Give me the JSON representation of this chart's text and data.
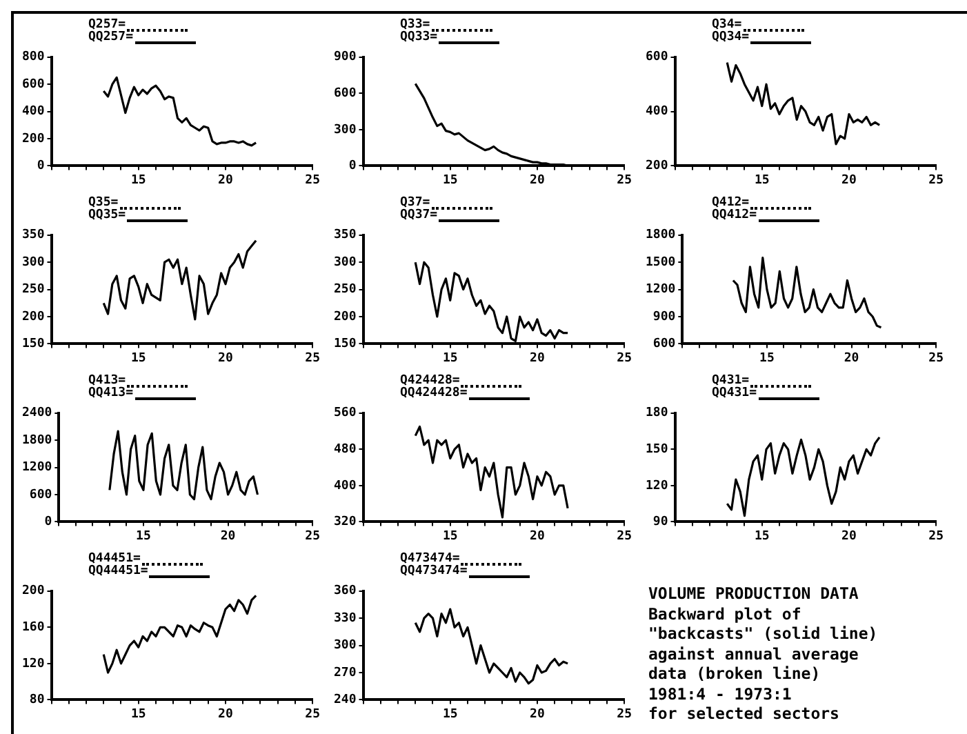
{
  "chart_data": [
    {
      "type": "line",
      "legend": "top left",
      "marker": "none",
      "grid": false,
      "xlim": [
        10,
        25
      ],
      "xticks": [
        {
          "value": 10,
          "label": null
        },
        {
          "value": 11,
          "label": null
        },
        {
          "value": 12,
          "label": null
        },
        {
          "value": 13,
          "label": null
        },
        {
          "value": 14,
          "label": null
        },
        15,
        {
          "value": 16,
          "label": null
        },
        {
          "value": 17,
          "label": null
        },
        {
          "value": 18,
          "label": null
        },
        {
          "value": 19,
          "label": null
        },
        20,
        {
          "value": 21,
          "label": null
        },
        {
          "value": 22,
          "label": null
        },
        {
          "value": 23,
          "label": null
        },
        {
          "value": 24,
          "label": null
        },
        25
      ],
      "ylim": [
        0,
        800
      ],
      "yticks": [
        0,
        200,
        400,
        600,
        800
      ],
      "x": [
        13,
        13.25,
        13.5,
        13.75,
        14,
        14.25,
        14.5,
        14.75,
        15,
        15.25,
        15.5,
        15.75,
        16,
        16.25,
        16.5,
        16.75,
        17,
        17.25,
        17.5,
        17.75,
        18,
        18.25,
        18.5,
        18.75,
        19,
        19.25,
        19.5,
        19.75,
        20,
        20.25,
        20.5,
        20.75,
        21,
        21.25,
        21.5,
        21.75
      ],
      "series": [
        {
          "name": "Q257=",
          "color": "#000000",
          "line_style": "dotted",
          "values": [
            null,
            null,
            null,
            null,
            null,
            null,
            null,
            null,
            null,
            null,
            null,
            null,
            null,
            null,
            null,
            null,
            null,
            null,
            null,
            null,
            null,
            null,
            null,
            null,
            null,
            null,
            null,
            null,
            null,
            null,
            null,
            null,
            null,
            null,
            null,
            null
          ]
        },
        {
          "name": "QQ257=",
          "color": "#000000",
          "line_style": "solid",
          "values": [
            550,
            510,
            600,
            650,
            520,
            390,
            500,
            580,
            520,
            560,
            530,
            570,
            590,
            550,
            490,
            510,
            500,
            350,
            320,
            350,
            300,
            280,
            260,
            290,
            280,
            180,
            160,
            170,
            170,
            180,
            180,
            170,
            180,
            160,
            150,
            170
          ]
        }
      ]
    },
    {
      "type": "line",
      "legend": "top left",
      "marker": "none",
      "grid": false,
      "xlim": [
        10,
        25
      ],
      "xticks": [
        {
          "value": 10,
          "label": null
        },
        {
          "value": 11,
          "label": null
        },
        {
          "value": 12,
          "label": null
        },
        {
          "value": 13,
          "label": null
        },
        {
          "value": 14,
          "label": null
        },
        15,
        {
          "value": 16,
          "label": null
        },
        {
          "value": 17,
          "label": null
        },
        {
          "value": 18,
          "label": null
        },
        {
          "value": 19,
          "label": null
        },
        20,
        {
          "value": 21,
          "label": null
        },
        {
          "value": 22,
          "label": null
        },
        {
          "value": 23,
          "label": null
        },
        {
          "value": 24,
          "label": null
        },
        25
      ],
      "ylim": [
        0,
        900
      ],
      "yticks": [
        0,
        300,
        600,
        900
      ],
      "x": [
        13,
        13.25,
        13.5,
        13.75,
        14,
        14.25,
        14.5,
        14.75,
        15,
        15.25,
        15.5,
        15.75,
        16,
        16.25,
        16.5,
        16.75,
        17,
        17.25,
        17.5,
        17.75,
        18,
        18.25,
        18.5,
        18.75,
        19,
        19.25,
        19.5,
        19.75,
        20,
        20.25,
        20.5,
        20.75,
        21,
        21.25,
        21.5,
        21.75
      ],
      "series": [
        {
          "name": "Q33=",
          "color": "#000000",
          "line_style": "dotted",
          "values": [
            null,
            null,
            null,
            null,
            null,
            null,
            null,
            null,
            null,
            null,
            null,
            null,
            null,
            null,
            null,
            null,
            null,
            null,
            null,
            null,
            null,
            null,
            null,
            null,
            null,
            null,
            null,
            null,
            null,
            null,
            null,
            null,
            null,
            null,
            null,
            null
          ]
        },
        {
          "name": "QQ33=",
          "color": "#000000",
          "line_style": "solid",
          "values": [
            680,
            620,
            560,
            480,
            400,
            330,
            350,
            290,
            280,
            260,
            270,
            240,
            210,
            190,
            170,
            150,
            130,
            140,
            160,
            130,
            110,
            100,
            80,
            70,
            60,
            50,
            40,
            30,
            30,
            20,
            20,
            10,
            10,
            10,
            10,
            0
          ]
        }
      ]
    },
    {
      "type": "line",
      "legend": "top left",
      "marker": "none",
      "grid": false,
      "xlim": [
        10,
        25
      ],
      "xticks": [
        {
          "value": 10,
          "label": null
        },
        {
          "value": 11,
          "label": null
        },
        {
          "value": 12,
          "label": null
        },
        {
          "value": 13,
          "label": null
        },
        {
          "value": 14,
          "label": null
        },
        15,
        {
          "value": 16,
          "label": null
        },
        {
          "value": 17,
          "label": null
        },
        {
          "value": 18,
          "label": null
        },
        {
          "value": 19,
          "label": null
        },
        20,
        {
          "value": 21,
          "label": null
        },
        {
          "value": 22,
          "label": null
        },
        {
          "value": 23,
          "label": null
        },
        {
          "value": 24,
          "label": null
        },
        25
      ],
      "ylim": [
        200,
        600
      ],
      "yticks": [
        200,
        400,
        600
      ],
      "x": [
        13,
        13.25,
        13.5,
        13.75,
        14,
        14.25,
        14.5,
        14.75,
        15,
        15.25,
        15.5,
        15.75,
        16,
        16.25,
        16.5,
        16.75,
        17,
        17.25,
        17.5,
        17.75,
        18,
        18.25,
        18.5,
        18.75,
        19,
        19.25,
        19.5,
        19.75,
        20,
        20.25,
        20.5,
        20.75,
        21,
        21.25,
        21.5,
        21.75
      ],
      "series": [
        {
          "name": "Q34=",
          "color": "#000000",
          "line_style": "dotted",
          "values": [
            null,
            null,
            null,
            null,
            null,
            null,
            null,
            null,
            null,
            null,
            null,
            null,
            null,
            null,
            null,
            null,
            null,
            null,
            null,
            null,
            null,
            null,
            null,
            null,
            null,
            null,
            null,
            null,
            null,
            null,
            null,
            null,
            null,
            null,
            null,
            null
          ]
        },
        {
          "name": "QQ34=",
          "color": "#000000",
          "line_style": "solid",
          "values": [
            580,
            510,
            570,
            540,
            500,
            470,
            440,
            490,
            420,
            500,
            410,
            430,
            390,
            420,
            440,
            450,
            370,
            420,
            400,
            360,
            350,
            380,
            330,
            380,
            390,
            280,
            310,
            300,
            390,
            360,
            370,
            360,
            380,
            350,
            360,
            350
          ]
        }
      ]
    },
    {
      "type": "line",
      "legend": "top left",
      "marker": "none",
      "grid": false,
      "xlim": [
        10,
        25
      ],
      "xticks": [
        {
          "value": 10,
          "label": null
        },
        {
          "value": 11,
          "label": null
        },
        {
          "value": 12,
          "label": null
        },
        {
          "value": 13,
          "label": null
        },
        {
          "value": 14,
          "label": null
        },
        15,
        {
          "value": 16,
          "label": null
        },
        {
          "value": 17,
          "label": null
        },
        {
          "value": 18,
          "label": null
        },
        {
          "value": 19,
          "label": null
        },
        20,
        {
          "value": 21,
          "label": null
        },
        {
          "value": 22,
          "label": null
        },
        {
          "value": 23,
          "label": null
        },
        {
          "value": 24,
          "label": null
        },
        25
      ],
      "ylim": [
        150,
        350
      ],
      "yticks": [
        150,
        200,
        250,
        300,
        350
      ],
      "x": [
        13,
        13.25,
        13.5,
        13.75,
        14,
        14.25,
        14.5,
        14.75,
        15,
        15.25,
        15.5,
        15.75,
        16,
        16.25,
        16.5,
        16.75,
        17,
        17.25,
        17.5,
        17.75,
        18,
        18.25,
        18.5,
        18.75,
        19,
        19.25,
        19.5,
        19.75,
        20,
        20.25,
        20.5,
        20.75,
        21,
        21.25,
        21.5,
        21.75
      ],
      "series": [
        {
          "name": "Q35=",
          "color": "#000000",
          "line_style": "dotted",
          "values": [
            null,
            null,
            null,
            null,
            null,
            null,
            null,
            null,
            null,
            null,
            null,
            null,
            null,
            null,
            null,
            null,
            null,
            null,
            null,
            null,
            null,
            null,
            null,
            null,
            null,
            null,
            null,
            null,
            null,
            null,
            null,
            null,
            null,
            null,
            null,
            null
          ]
        },
        {
          "name": "QQ35=",
          "color": "#000000",
          "line_style": "solid",
          "values": [
            225,
            205,
            260,
            275,
            230,
            215,
            270,
            275,
            255,
            225,
            260,
            240,
            235,
            230,
            300,
            305,
            290,
            305,
            260,
            290,
            240,
            195,
            275,
            260,
            205,
            225,
            240,
            280,
            260,
            290,
            300,
            315,
            290,
            320,
            330,
            340
          ]
        }
      ]
    },
    {
      "type": "line",
      "legend": "top left",
      "marker": "none",
      "grid": false,
      "xlim": [
        10,
        25
      ],
      "xticks": [
        {
          "value": 10,
          "label": null
        },
        {
          "value": 11,
          "label": null
        },
        {
          "value": 12,
          "label": null
        },
        {
          "value": 13,
          "label": null
        },
        {
          "value": 14,
          "label": null
        },
        15,
        {
          "value": 16,
          "label": null
        },
        {
          "value": 17,
          "label": null
        },
        {
          "value": 18,
          "label": null
        },
        {
          "value": 19,
          "label": null
        },
        20,
        {
          "value": 21,
          "label": null
        },
        {
          "value": 22,
          "label": null
        },
        {
          "value": 23,
          "label": null
        },
        {
          "value": 24,
          "label": null
        },
        25
      ],
      "ylim": [
        150,
        350
      ],
      "yticks": [
        150,
        200,
        250,
        300,
        350
      ],
      "x": [
        13,
        13.25,
        13.5,
        13.75,
        14,
        14.25,
        14.5,
        14.75,
        15,
        15.25,
        15.5,
        15.75,
        16,
        16.25,
        16.5,
        16.75,
        17,
        17.25,
        17.5,
        17.75,
        18,
        18.25,
        18.5,
        18.75,
        19,
        19.25,
        19.5,
        19.75,
        20,
        20.25,
        20.5,
        20.75,
        21,
        21.25,
        21.5,
        21.75
      ],
      "series": [
        {
          "name": "Q37=",
          "color": "#000000",
          "line_style": "dotted",
          "values": [
            null,
            null,
            null,
            null,
            null,
            null,
            null,
            null,
            null,
            null,
            null,
            null,
            null,
            null,
            null,
            null,
            null,
            null,
            null,
            null,
            null,
            null,
            null,
            null,
            null,
            null,
            null,
            null,
            null,
            null,
            null,
            null,
            null,
            null,
            null,
            null
          ]
        },
        {
          "name": "QQ37=",
          "color": "#000000",
          "line_style": "solid",
          "values": [
            300,
            260,
            300,
            290,
            240,
            200,
            250,
            270,
            230,
            280,
            275,
            250,
            270,
            240,
            220,
            230,
            205,
            220,
            210,
            180,
            170,
            200,
            160,
            155,
            200,
            180,
            190,
            175,
            195,
            170,
            165,
            175,
            160,
            175,
            170,
            170
          ]
        }
      ]
    },
    {
      "type": "line",
      "legend": "top left",
      "marker": "none",
      "grid": false,
      "xlim": [
        10,
        25
      ],
      "xticks": [
        {
          "value": 10,
          "label": null
        },
        {
          "value": 11,
          "label": null
        },
        {
          "value": 12,
          "label": null
        },
        {
          "value": 13,
          "label": null
        },
        {
          "value": 14,
          "label": null
        },
        15,
        {
          "value": 16,
          "label": null
        },
        {
          "value": 17,
          "label": null
        },
        {
          "value": 18,
          "label": null
        },
        {
          "value": 19,
          "label": null
        },
        20,
        {
          "value": 21,
          "label": null
        },
        {
          "value": 22,
          "label": null
        },
        {
          "value": 23,
          "label": null
        },
        {
          "value": 24,
          "label": null
        },
        25
      ],
      "ylim": [
        600,
        1800
      ],
      "yticks": [
        600,
        900,
        1200,
        1500,
        1800
      ],
      "x": [
        13,
        13.25,
        13.5,
        13.75,
        14,
        14.25,
        14.5,
        14.75,
        15,
        15.25,
        15.5,
        15.75,
        16,
        16.25,
        16.5,
        16.75,
        17,
        17.25,
        17.5,
        17.75,
        18,
        18.25,
        18.5,
        18.75,
        19,
        19.25,
        19.5,
        19.75,
        20,
        20.25,
        20.5,
        20.75,
        21,
        21.25,
        21.5,
        21.75
      ],
      "series": [
        {
          "name": "Q412=",
          "color": "#000000",
          "line_style": "dotted",
          "values": [
            null,
            null,
            null,
            null,
            null,
            null,
            null,
            null,
            null,
            null,
            null,
            null,
            null,
            null,
            null,
            null,
            null,
            null,
            null,
            null,
            null,
            null,
            null,
            null,
            null,
            null,
            null,
            null,
            null,
            null,
            null,
            null,
            null,
            null,
            null,
            null
          ]
        },
        {
          "name": "QQ412=",
          "color": "#000000",
          "line_style": "solid",
          "values": [
            1300,
            1250,
            1050,
            950,
            1450,
            1150,
            1000,
            1550,
            1200,
            1000,
            1050,
            1400,
            1100,
            1000,
            1100,
            1450,
            1150,
            950,
            1000,
            1200,
            1000,
            950,
            1050,
            1150,
            1050,
            1000,
            1000,
            1300,
            1100,
            950,
            1000,
            1100,
            950,
            900,
            800,
            780
          ]
        }
      ]
    },
    {
      "type": "line",
      "legend": "top left",
      "marker": "none",
      "grid": false,
      "xlim": [
        10,
        25
      ],
      "xticks": [
        {
          "value": 10,
          "label": null
        },
        {
          "value": 11,
          "label": null
        },
        {
          "value": 12,
          "label": null
        },
        {
          "value": 13,
          "label": null
        },
        {
          "value": 14,
          "label": null
        },
        15,
        {
          "value": 16,
          "label": null
        },
        {
          "value": 17,
          "label": null
        },
        {
          "value": 18,
          "label": null
        },
        {
          "value": 19,
          "label": null
        },
        20,
        {
          "value": 21,
          "label": null
        },
        {
          "value": 22,
          "label": null
        },
        {
          "value": 23,
          "label": null
        },
        {
          "value": 24,
          "label": null
        },
        25
      ],
      "ylim": [
        0,
        2400
      ],
      "yticks": [
        0,
        600,
        1200,
        1800,
        2400
      ],
      "x": [
        13,
        13.25,
        13.5,
        13.75,
        14,
        14.25,
        14.5,
        14.75,
        15,
        15.25,
        15.5,
        15.75,
        16,
        16.25,
        16.5,
        16.75,
        17,
        17.25,
        17.5,
        17.75,
        18,
        18.25,
        18.5,
        18.75,
        19,
        19.25,
        19.5,
        19.75,
        20,
        20.25,
        20.5,
        20.75,
        21,
        21.25,
        21.5,
        21.75
      ],
      "series": [
        {
          "name": "Q413=",
          "color": "#000000",
          "line_style": "dotted",
          "values": [
            null,
            null,
            null,
            null,
            null,
            null,
            null,
            null,
            null,
            null,
            null,
            null,
            null,
            null,
            null,
            null,
            null,
            null,
            null,
            null,
            null,
            null,
            null,
            null,
            null,
            null,
            null,
            null,
            null,
            null,
            null,
            null,
            null,
            null,
            null,
            null
          ]
        },
        {
          "name": "QQ413=",
          "color": "#000000",
          "line_style": "solid",
          "values": [
            700,
            1500,
            2000,
            1100,
            600,
            1600,
            1900,
            900,
            700,
            1700,
            1950,
            900,
            600,
            1400,
            1700,
            800,
            700,
            1300,
            1700,
            600,
            500,
            1200,
            1650,
            700,
            500,
            1000,
            1300,
            1100,
            600,
            800,
            1100,
            700,
            600,
            900,
            1000,
            600
          ]
        }
      ]
    },
    {
      "type": "line",
      "legend": "top left",
      "marker": "none",
      "grid": false,
      "xlim": [
        10,
        25
      ],
      "xticks": [
        {
          "value": 10,
          "label": null
        },
        {
          "value": 11,
          "label": null
        },
        {
          "value": 12,
          "label": null
        },
        {
          "value": 13,
          "label": null
        },
        {
          "value": 14,
          "label": null
        },
        15,
        {
          "value": 16,
          "label": null
        },
        {
          "value": 17,
          "label": null
        },
        {
          "value": 18,
          "label": null
        },
        {
          "value": 19,
          "label": null
        },
        20,
        {
          "value": 21,
          "label": null
        },
        {
          "value": 22,
          "label": null
        },
        {
          "value": 23,
          "label": null
        },
        {
          "value": 24,
          "label": null
        },
        25
      ],
      "ylim": [
        320,
        560
      ],
      "yticks": [
        320,
        400,
        480,
        560
      ],
      "x": [
        13,
        13.25,
        13.5,
        13.75,
        14,
        14.25,
        14.5,
        14.75,
        15,
        15.25,
        15.5,
        15.75,
        16,
        16.25,
        16.5,
        16.75,
        17,
        17.25,
        17.5,
        17.75,
        18,
        18.25,
        18.5,
        18.75,
        19,
        19.25,
        19.5,
        19.75,
        20,
        20.25,
        20.5,
        20.75,
        21,
        21.25,
        21.5,
        21.75
      ],
      "series": [
        {
          "name": "Q424428=",
          "color": "#000000",
          "line_style": "dotted",
          "values": [
            null,
            null,
            null,
            null,
            null,
            null,
            null,
            null,
            null,
            null,
            null,
            null,
            null,
            null,
            null,
            null,
            null,
            null,
            null,
            null,
            null,
            null,
            null,
            null,
            null,
            null,
            null,
            null,
            null,
            null,
            null,
            null,
            null,
            null,
            null,
            null
          ]
        },
        {
          "name": "QQ424428=",
          "color": "#000000",
          "line_style": "solid",
          "values": [
            510,
            530,
            490,
            500,
            450,
            500,
            490,
            500,
            460,
            480,
            490,
            440,
            470,
            450,
            460,
            390,
            440,
            420,
            450,
            380,
            330,
            440,
            440,
            380,
            400,
            450,
            420,
            370,
            420,
            400,
            430,
            420,
            380,
            400,
            400,
            350
          ]
        }
      ]
    },
    {
      "type": "line",
      "legend": "top left",
      "marker": "none",
      "grid": false,
      "xlim": [
        10,
        25
      ],
      "xticks": [
        {
          "value": 10,
          "label": null
        },
        {
          "value": 11,
          "label": null
        },
        {
          "value": 12,
          "label": null
        },
        {
          "value": 13,
          "label": null
        },
        {
          "value": 14,
          "label": null
        },
        15,
        {
          "value": 16,
          "label": null
        },
        {
          "value": 17,
          "label": null
        },
        {
          "value": 18,
          "label": null
        },
        {
          "value": 19,
          "label": null
        },
        20,
        {
          "value": 21,
          "label": null
        },
        {
          "value": 22,
          "label": null
        },
        {
          "value": 23,
          "label": null
        },
        {
          "value": 24,
          "label": null
        },
        25
      ],
      "ylim": [
        90,
        180
      ],
      "yticks": [
        90,
        120,
        150,
        180
      ],
      "x": [
        13,
        13.25,
        13.5,
        13.75,
        14,
        14.25,
        14.5,
        14.75,
        15,
        15.25,
        15.5,
        15.75,
        16,
        16.25,
        16.5,
        16.75,
        17,
        17.25,
        17.5,
        17.75,
        18,
        18.25,
        18.5,
        18.75,
        19,
        19.25,
        19.5,
        19.75,
        20,
        20.25,
        20.5,
        20.75,
        21,
        21.25,
        21.5,
        21.75
      ],
      "series": [
        {
          "name": "Q431=",
          "color": "#000000",
          "line_style": "dotted",
          "values": [
            null,
            null,
            null,
            null,
            null,
            null,
            null,
            null,
            null,
            null,
            null,
            null,
            null,
            null,
            null,
            null,
            null,
            null,
            null,
            null,
            null,
            null,
            null,
            null,
            null,
            null,
            null,
            null,
            null,
            null,
            null,
            null,
            null,
            null,
            null,
            null
          ]
        },
        {
          "name": "QQ431=",
          "color": "#000000",
          "line_style": "solid",
          "values": [
            105,
            100,
            125,
            115,
            95,
            125,
            140,
            145,
            125,
            150,
            155,
            130,
            145,
            155,
            150,
            130,
            145,
            158,
            145,
            125,
            135,
            150,
            140,
            120,
            105,
            115,
            135,
            125,
            140,
            145,
            130,
            140,
            150,
            145,
            155,
            160
          ]
        }
      ]
    },
    {
      "type": "line",
      "legend": "top left",
      "marker": "none",
      "grid": false,
      "xlim": [
        10,
        25
      ],
      "xticks": [
        {
          "value": 10,
          "label": null
        },
        {
          "value": 11,
          "label": null
        },
        {
          "value": 12,
          "label": null
        },
        {
          "value": 13,
          "label": null
        },
        {
          "value": 14,
          "label": null
        },
        15,
        {
          "value": 16,
          "label": null
        },
        {
          "value": 17,
          "label": null
        },
        {
          "value": 18,
          "label": null
        },
        {
          "value": 19,
          "label": null
        },
        20,
        {
          "value": 21,
          "label": null
        },
        {
          "value": 22,
          "label": null
        },
        {
          "value": 23,
          "label": null
        },
        {
          "value": 24,
          "label": null
        },
        25
      ],
      "ylim": [
        80,
        200
      ],
      "yticks": [
        80,
        120,
        160,
        200
      ],
      "x": [
        13,
        13.25,
        13.5,
        13.75,
        14,
        14.25,
        14.5,
        14.75,
        15,
        15.25,
        15.5,
        15.75,
        16,
        16.25,
        16.5,
        16.75,
        17,
        17.25,
        17.5,
        17.75,
        18,
        18.25,
        18.5,
        18.75,
        19,
        19.25,
        19.5,
        19.75,
        20,
        20.25,
        20.5,
        20.75,
        21,
        21.25,
        21.5,
        21.75
      ],
      "series": [
        {
          "name": "Q44451=",
          "color": "#000000",
          "line_style": "dotted",
          "values": [
            null,
            null,
            null,
            null,
            null,
            null,
            null,
            null,
            null,
            null,
            null,
            null,
            null,
            null,
            null,
            null,
            null,
            null,
            null,
            null,
            null,
            null,
            null,
            null,
            null,
            null,
            null,
            null,
            null,
            null,
            null,
            null,
            null,
            null,
            null,
            null
          ]
        },
        {
          "name": "QQ44451=",
          "color": "#000000",
          "line_style": "solid",
          "values": [
            130,
            110,
            120,
            135,
            120,
            130,
            140,
            145,
            138,
            150,
            145,
            155,
            150,
            160,
            160,
            155,
            150,
            162,
            160,
            150,
            162,
            158,
            155,
            165,
            162,
            160,
            150,
            165,
            180,
            185,
            178,
            190,
            185,
            175,
            190,
            195
          ]
        }
      ]
    },
    {
      "type": "line",
      "legend": "top left",
      "marker": "none",
      "grid": false,
      "xlim": [
        10,
        25
      ],
      "xticks": [
        {
          "value": 10,
          "label": null
        },
        {
          "value": 11,
          "label": null
        },
        {
          "value": 12,
          "label": null
        },
        {
          "value": 13,
          "label": null
        },
        {
          "value": 14,
          "label": null
        },
        15,
        {
          "value": 16,
          "label": null
        },
        {
          "value": 17,
          "label": null
        },
        {
          "value": 18,
          "label": null
        },
        {
          "value": 19,
          "label": null
        },
        20,
        {
          "value": 21,
          "label": null
        },
        {
          "value": 22,
          "label": null
        },
        {
          "value": 23,
          "label": null
        },
        {
          "value": 24,
          "label": null
        },
        25
      ],
      "ylim": [
        240,
        360
      ],
      "yticks": [
        240,
        270,
        300,
        330,
        360
      ],
      "x": [
        13,
        13.25,
        13.5,
        13.75,
        14,
        14.25,
        14.5,
        14.75,
        15,
        15.25,
        15.5,
        15.75,
        16,
        16.25,
        16.5,
        16.75,
        17,
        17.25,
        17.5,
        17.75,
        18,
        18.25,
        18.5,
        18.75,
        19,
        19.25,
        19.5,
        19.75,
        20,
        20.25,
        20.5,
        20.75,
        21,
        21.25,
        21.5,
        21.75
      ],
      "series": [
        {
          "name": "Q473474=",
          "color": "#000000",
          "line_style": "dotted",
          "values": [
            null,
            null,
            null,
            null,
            null,
            null,
            null,
            null,
            null,
            null,
            null,
            null,
            null,
            null,
            null,
            null,
            null,
            null,
            null,
            null,
            null,
            null,
            null,
            null,
            null,
            null,
            null,
            null,
            null,
            null,
            null,
            null,
            null,
            null,
            null,
            null
          ]
        },
        {
          "name": "QQ473474=",
          "color": "#000000",
          "line_style": "solid",
          "values": [
            325,
            315,
            330,
            335,
            330,
            310,
            335,
            325,
            340,
            320,
            325,
            310,
            320,
            300,
            280,
            300,
            285,
            270,
            280,
            275,
            270,
            265,
            275,
            260,
            270,
            265,
            258,
            262,
            278,
            270,
            272,
            280,
            285,
            278,
            282,
            280
          ]
        }
      ]
    },
    {
      "type": "other",
      "title": "VOLUME PRODUCTION DATA",
      "annotations": [
        "Backward plot of",
        "\"backcasts\" (solid line)",
        "against annual average",
        "data (broken line)",
        "1981:4 - 1973:1",
        "for selected sectors"
      ]
    }
  ]
}
